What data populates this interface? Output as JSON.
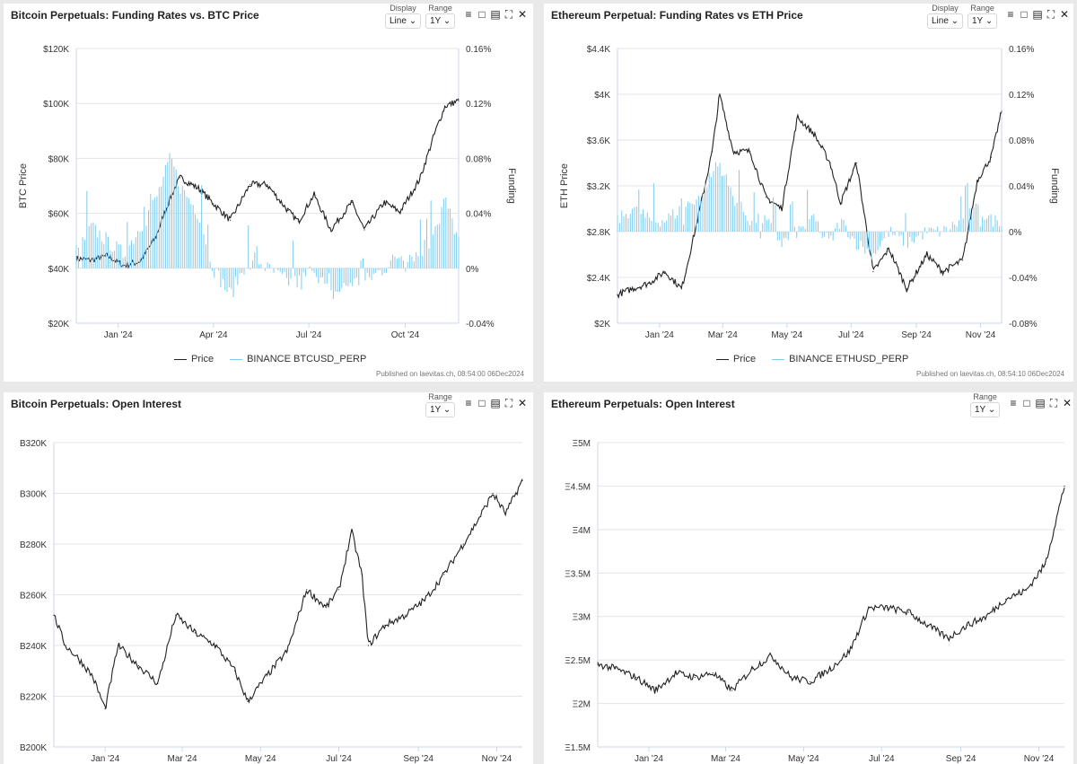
{
  "panels": [
    {
      "title": "Bitcoin Perpetuals: Funding Rates vs. BTC Price",
      "display_label": "Display",
      "display_value": "Line",
      "range_label": "Range",
      "range_value": "1Y",
      "legend": [
        "Price",
        "BINANCE BTCUSD_PERP"
      ],
      "published": "Published on laevitas.ch, 08:54:00 06Dec2024"
    },
    {
      "title": "Ethereum Perpetual: Funding Rates vs ETH Price",
      "display_label": "Display",
      "display_value": "Line",
      "range_label": "Range",
      "range_value": "1Y",
      "legend": [
        "Price",
        "BINANCE ETHUSD_PERP"
      ],
      "published": "Published on laevitas.ch, 08:54:10 06Dec2024"
    },
    {
      "title": "Bitcoin Perpetuals: Open Interest",
      "range_label": "Range",
      "range_value": "1Y"
    },
    {
      "title": "Ethereum Perpetuals: Open Interest",
      "range_label": "Range",
      "range_value": "1Y"
    }
  ],
  "toolbar_icons": [
    "menu-icon",
    "bookmark-icon",
    "book-icon",
    "fullscreen-icon",
    "close-icon"
  ],
  "colors": {
    "price": "#222222",
    "funding": "#7ecbf0",
    "grid": "#e4e4e4"
  },
  "chart_data": [
    {
      "type": "line",
      "title": "Bitcoin Perpetuals: Funding Rates vs. BTC Price",
      "ylabel": "BTC Price",
      "ylabel_right": "Funding",
      "ylim": [
        20000,
        120000
      ],
      "ylim_right": [
        -0.04,
        0.16
      ],
      "yticks": [
        "$20K",
        "$40K",
        "$60K",
        "$80K",
        "$100K",
        "$120K"
      ],
      "yticks_right": [
        "-0.04%",
        "0%",
        "0.04%",
        "0.08%",
        "0.12%",
        "0.16%"
      ],
      "xticks": [
        "Jan '24",
        "Apr '24",
        "Jul '24",
        "Oct '24"
      ],
      "x": [
        "2023-12-06",
        "2023-12-20",
        "2024-01-05",
        "2024-01-20",
        "2024-02-05",
        "2024-02-20",
        "2024-03-05",
        "2024-03-14",
        "2024-04-01",
        "2024-04-15",
        "2024-05-01",
        "2024-05-20",
        "2024-06-05",
        "2024-06-25",
        "2024-07-05",
        "2024-07-20",
        "2024-08-05",
        "2024-08-25",
        "2024-09-06",
        "2024-09-25",
        "2024-10-10",
        "2024-10-29",
        "2024-11-12",
        "2024-11-22",
        "2024-12-05"
      ],
      "series": [
        {
          "name": "Price",
          "axis": "left",
          "values": [
            43500,
            43000,
            44500,
            41000,
            42500,
            51500,
            66000,
            73000,
            69000,
            63500,
            57500,
            70500,
            70500,
            61000,
            57000,
            66800,
            54000,
            64000,
            54000,
            64000,
            60500,
            72500,
            89000,
            99000,
            101000
          ]
        },
        {
          "name": "BINANCE BTCUSD_PERP",
          "axis": "right",
          "values": [
            0.01,
            0.03,
            0.02,
            0.01,
            0.03,
            0.05,
            0.08,
            0.06,
            0.04,
            0.0,
            -0.02,
            0.01,
            0.0,
            -0.01,
            -0.01,
            0.0,
            -0.02,
            -0.01,
            -0.01,
            0.0,
            0.01,
            0.01,
            0.03,
            0.05,
            0.02
          ]
        }
      ]
    },
    {
      "type": "line",
      "title": "Ethereum Perpetual: Funding Rates vs ETH Price",
      "ylabel": "ETH Price",
      "ylabel_right": "Funding",
      "ylim": [
        2000,
        4400
      ],
      "ylim_right": [
        -0.08,
        0.16
      ],
      "yticks": [
        "$2K",
        "$2.4K",
        "$2.8K",
        "$3.2K",
        "$3.6K",
        "$4K",
        "$4.4K"
      ],
      "yticks_right": [
        "-0.08%",
        "-0.04%",
        "0%",
        "0.04%",
        "0.08%",
        "0.12%",
        "0.16%"
      ],
      "xticks": [
        "Jan '24",
        "Mar '24",
        "May '24",
        "Jul '24",
        "Sep '24",
        "Nov '24"
      ],
      "x": [
        "2023-12-06",
        "2023-12-20",
        "2024-01-05",
        "2024-01-20",
        "2024-02-05",
        "2024-02-20",
        "2024-03-05",
        "2024-03-12",
        "2024-03-25",
        "2024-04-10",
        "2024-04-25",
        "2024-05-10",
        "2024-05-25",
        "2024-06-10",
        "2024-06-25",
        "2024-07-05",
        "2024-07-20",
        "2024-08-05",
        "2024-08-20",
        "2024-09-06",
        "2024-09-25",
        "2024-10-10",
        "2024-10-29",
        "2024-11-12",
        "2024-11-25",
        "2024-12-05"
      ],
      "series": [
        {
          "name": "Price",
          "axis": "left",
          "values": [
            2250,
            2300,
            2350,
            2450,
            2300,
            2900,
            3500,
            4000,
            3500,
            3500,
            3100,
            3000,
            3800,
            3650,
            3400,
            3050,
            3400,
            2450,
            2650,
            2300,
            2600,
            2450,
            2550,
            3250,
            3450,
            3850
          ]
        },
        {
          "name": "BINANCE ETHUSD_PERP",
          "axis": "right",
          "values": [
            0.01,
            0.02,
            0.01,
            0.01,
            0.02,
            0.03,
            0.05,
            0.06,
            0.03,
            0.01,
            0.01,
            -0.01,
            0.0,
            0.01,
            -0.01,
            0.01,
            -0.01,
            -0.02,
            0.0,
            -0.01,
            0.0,
            0.0,
            0.01,
            0.02,
            0.01,
            0.01
          ]
        }
      ]
    },
    {
      "type": "line",
      "title": "Bitcoin Perpetuals: Open Interest",
      "ylim": [
        200000,
        320000
      ],
      "yticks": [
        "B200K",
        "B220K",
        "B240K",
        "B260K",
        "B280K",
        "B300K",
        "B320K"
      ],
      "xticks": [
        "Jan '24",
        "Mar '24",
        "May '24",
        "Jul '24",
        "Sep '24",
        "Nov '24"
      ],
      "x": [
        "2023-12-06",
        "2023-12-15",
        "2023-12-25",
        "2024-01-05",
        "2024-01-15",
        "2024-01-25",
        "2024-02-10",
        "2024-02-25",
        "2024-03-10",
        "2024-03-25",
        "2024-04-10",
        "2024-04-25",
        "2024-05-05",
        "2024-05-20",
        "2024-06-05",
        "2024-06-20",
        "2024-07-05",
        "2024-07-15",
        "2024-07-25",
        "2024-08-02",
        "2024-08-07",
        "2024-08-20",
        "2024-09-05",
        "2024-09-20",
        "2024-10-05",
        "2024-10-20",
        "2024-11-01",
        "2024-11-12",
        "2024-11-22",
        "2024-12-05"
      ],
      "series": [
        {
          "name": "Open Interest",
          "values": [
            252000,
            240000,
            235000,
            228000,
            215000,
            240000,
            232000,
            225000,
            252000,
            245000,
            240000,
            230000,
            218000,
            228000,
            238000,
            262000,
            255000,
            262000,
            285000,
            268000,
            240000,
            248000,
            252000,
            258000,
            268000,
            280000,
            290000,
            300000,
            292000,
            305000
          ]
        }
      ]
    },
    {
      "type": "line",
      "title": "Ethereum Perpetuals: Open Interest",
      "ylim": [
        1500000,
        5000000
      ],
      "yticks": [
        "Ξ1.5M",
        "Ξ2M",
        "Ξ2.5M",
        "Ξ3M",
        "Ξ3.5M",
        "Ξ4M",
        "Ξ4.5M",
        "Ξ5M"
      ],
      "xticks": [
        "Jan '24",
        "Mar '24",
        "May '24",
        "Jul '24",
        "Sep '24",
        "Nov '24"
      ],
      "x": [
        "2023-12-06",
        "2023-12-20",
        "2024-01-05",
        "2024-01-20",
        "2024-02-05",
        "2024-02-20",
        "2024-03-05",
        "2024-03-20",
        "2024-04-05",
        "2024-04-20",
        "2024-05-05",
        "2024-05-20",
        "2024-06-05",
        "2024-06-20",
        "2024-07-05",
        "2024-07-20",
        "2024-08-05",
        "2024-08-20",
        "2024-09-05",
        "2024-09-20",
        "2024-10-05",
        "2024-10-20",
        "2024-11-05",
        "2024-11-20",
        "2024-12-05"
      ],
      "series": [
        {
          "name": "Open Interest",
          "values": [
            2450000,
            2400000,
            2300000,
            2150000,
            2350000,
            2300000,
            2350000,
            2150000,
            2400000,
            2550000,
            2300000,
            2250000,
            2400000,
            2600000,
            3100000,
            3100000,
            3050000,
            2900000,
            2750000,
            2900000,
            3000000,
            3200000,
            3300000,
            3600000,
            4500000
          ]
        }
      ]
    }
  ]
}
